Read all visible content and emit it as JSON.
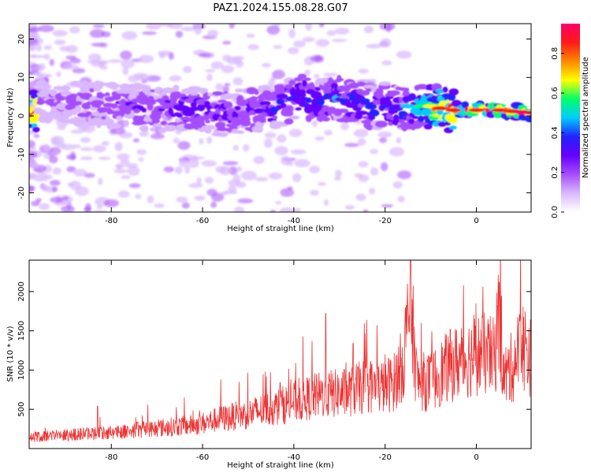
{
  "figure_title": "PAZ1.2024.155.08.28.G07",
  "colors": {
    "line": "#ee3333",
    "axes": "#000000",
    "background": "#ffffff",
    "colormap": [
      "#ffffff",
      "#d9b8ff",
      "#a64dff",
      "#6600ff",
      "#2222ff",
      "#00ccff",
      "#00ff66",
      "#ffff00",
      "#ff8800",
      "#ff1a1a",
      "#ff0066"
    ]
  },
  "chart_data": [
    {
      "type": "heatmap",
      "title": "",
      "xlabel": "Height of straight line (km)",
      "ylabel": "Frequency (Hz)",
      "xlim": [
        -98,
        12
      ],
      "ylim": [
        -25,
        24
      ],
      "x_ticks": [
        -80,
        -60,
        -40,
        -20,
        0
      ],
      "y_ticks": [
        -20,
        -10,
        0,
        10,
        20
      ],
      "colorbar": {
        "label": "Normalized spectral amplitude",
        "range": [
          0,
          0.95
        ],
        "ticks": [
          "0.0",
          "0.2",
          "0.4",
          "0.6",
          "0.8"
        ]
      },
      "ridge": {
        "description": "dominant signal ridge (frequency vs height) with peak normalized amplitude",
        "x": [
          -96,
          -90,
          -85,
          -80,
          -75,
          -70,
          -65,
          -60,
          -55,
          -50,
          -45,
          -40,
          -38,
          -35,
          -30,
          -25,
          -22,
          -20,
          -17,
          -15,
          -12,
          -10,
          -8,
          -5,
          0,
          5,
          8,
          10,
          12
        ],
        "y": [
          4,
          3.5,
          3,
          3,
          2.5,
          1.5,
          2,
          1.5,
          0.5,
          1.5,
          2,
          4.5,
          5,
          3.5,
          4.5,
          3.5,
          1.5,
          3,
          2,
          2.5,
          2.5,
          2.5,
          2,
          1.5,
          1.5,
          1.5,
          1.2,
          1,
          0.8
        ],
        "amplitude": [
          0.18,
          0.2,
          0.22,
          0.25,
          0.25,
          0.3,
          0.32,
          0.32,
          0.33,
          0.33,
          0.34,
          0.38,
          0.4,
          0.4,
          0.4,
          0.4,
          0.38,
          0.4,
          0.42,
          0.45,
          0.55,
          0.7,
          0.82,
          0.85,
          0.88,
          0.88,
          0.9,
          0.92,
          0.95
        ]
      }
    },
    {
      "type": "line",
      "title": "",
      "xlabel": "Height of straight line (km)",
      "ylabel": "SNR (10 * v/v)",
      "xlim": [
        -98,
        12
      ],
      "ylim": [
        0,
        2400
      ],
      "x_ticks": [
        -80,
        -60,
        -40,
        -20,
        0
      ],
      "y_ticks": [
        500,
        1000,
        1500,
        2000
      ],
      "series": [
        {
          "x": [
            -98,
            -96,
            -94,
            -92,
            -90,
            -88,
            -86,
            -84,
            -82,
            -80,
            -78,
            -76,
            -74,
            -72,
            -70,
            -68,
            -66,
            -64,
            -62,
            -60,
            -58,
            -56,
            -54,
            -52,
            -50,
            -48,
            -46,
            -44,
            -42,
            -40,
            -38,
            -36,
            -34,
            -32,
            -30,
            -28,
            -26,
            -24,
            -22,
            -20,
            -18,
            -16,
            -14.5,
            -13,
            -12,
            -10,
            -8,
            -6,
            -4,
            -2,
            0,
            2,
            4,
            5,
            6,
            8,
            10,
            12
          ],
          "y": [
            150,
            150,
            160,
            170,
            170,
            180,
            190,
            190,
            200,
            210,
            220,
            230,
            240,
            250,
            260,
            270,
            280,
            290,
            300,
            320,
            350,
            380,
            400,
            420,
            440,
            470,
            500,
            520,
            560,
            600,
            620,
            660,
            680,
            700,
            700,
            720,
            760,
            800,
            780,
            800,
            850,
            1100,
            1900,
            850,
            850,
            850,
            950,
            1050,
            1100,
            1150,
            1200,
            1200,
            1150,
            1700,
            900,
            1050,
            1350,
            1150
          ],
          "spikes": [
            {
              "x": -14.3,
              "y": 2420
            },
            {
              "x": -15.5,
              "y": 1800
            },
            {
              "x": -33,
              "y": 1720
            },
            {
              "x": -24,
              "y": 1640
            },
            {
              "x": 5,
              "y": 2120
            },
            {
              "x": 9.5,
              "y": 1620
            },
            {
              "x": -38,
              "y": 1430
            },
            {
              "x": -36,
              "y": 1370
            },
            {
              "x": -27,
              "y": 1340
            },
            {
              "x": -20,
              "y": 1200
            },
            {
              "x": -56,
              "y": 880
            },
            {
              "x": -52,
              "y": 850
            },
            {
              "x": -46,
              "y": 920
            },
            {
              "x": -43,
              "y": 840
            },
            {
              "x": -64,
              "y": 650
            },
            {
              "x": -72,
              "y": 560
            },
            {
              "x": -83,
              "y": 540
            }
          ]
        }
      ]
    }
  ]
}
